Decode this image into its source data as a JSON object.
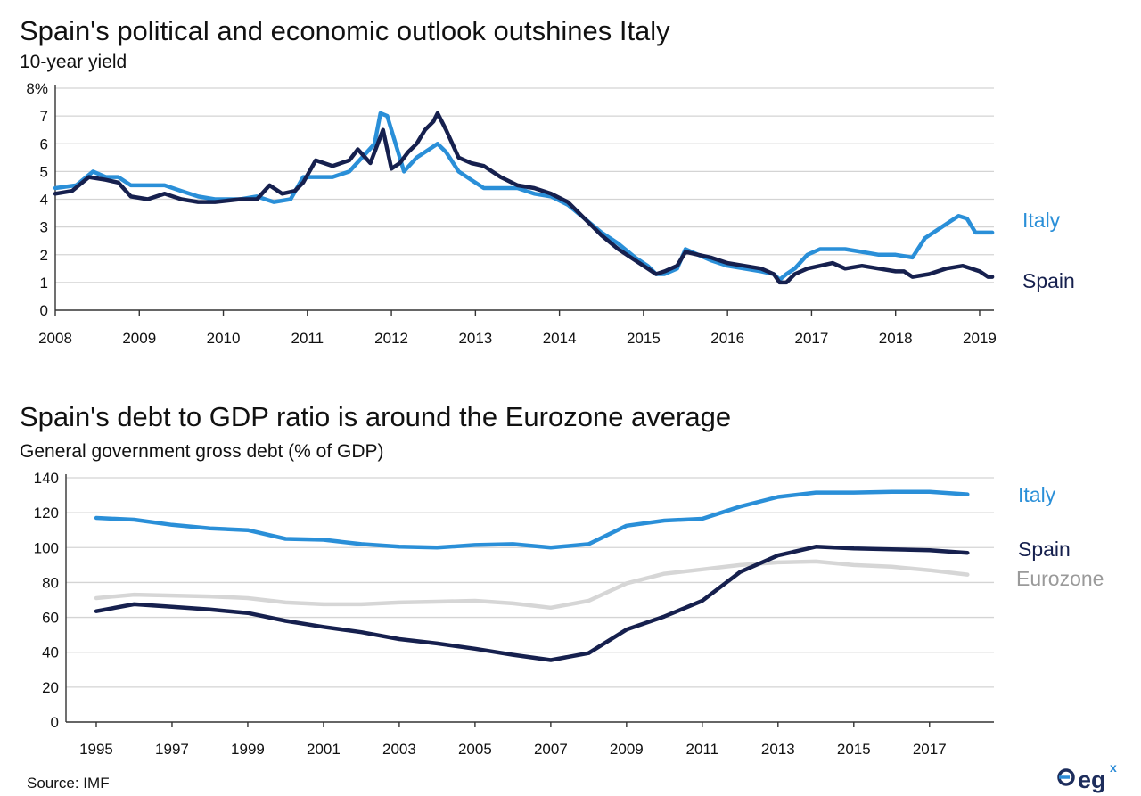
{
  "colors": {
    "italy": "#2a8fd8",
    "spain": "#16204e",
    "eurozone": "#d6d6d6",
    "grid": "#d4d4d4"
  },
  "footer": {
    "source": "Source: IMF",
    "logo_text": "eg",
    "logo_sup": "x"
  },
  "chart_data": [
    {
      "type": "line",
      "title": "Spain's political and economic outlook outshines Italy",
      "subtitle": "10-year yield",
      "ylim": [
        0,
        8
      ],
      "y_ticks": [
        "0",
        "1",
        "2",
        "3",
        "4",
        "5",
        "6",
        "7",
        "8%"
      ],
      "xlim": [
        2008.0,
        2019.17
      ],
      "x_ticks": [
        "2008",
        "2009",
        "2010",
        "2011",
        "2012",
        "2013",
        "2014",
        "2015",
        "2016",
        "2017",
        "2018",
        "2019"
      ],
      "grid": true,
      "series": [
        {
          "name": "Italy",
          "color_key": "italy",
          "x": [
            2008.0,
            2008.25,
            2008.45,
            2008.6,
            2008.75,
            2008.9,
            2009.1,
            2009.3,
            2009.5,
            2009.7,
            2009.9,
            2010.2,
            2010.4,
            2010.6,
            2010.8,
            2010.95,
            2011.1,
            2011.3,
            2011.5,
            2011.65,
            2011.8,
            2011.87,
            2011.95,
            2012.05,
            2012.15,
            2012.3,
            2012.45,
            2012.55,
            2012.65,
            2012.8,
            2012.95,
            2013.1,
            2013.3,
            2013.5,
            2013.7,
            2013.9,
            2014.1,
            2014.3,
            2014.5,
            2014.7,
            2014.9,
            2015.05,
            2015.15,
            2015.25,
            2015.4,
            2015.5,
            2015.65,
            2015.8,
            2016.0,
            2016.2,
            2016.4,
            2016.55,
            2016.62,
            2016.7,
            2016.8,
            2016.95,
            2017.1,
            2017.25,
            2017.4,
            2017.6,
            2017.8,
            2018.0,
            2018.2,
            2018.35,
            2018.45,
            2018.55,
            2018.65,
            2018.75,
            2018.85,
            2018.95,
            2019.05,
            2019.15
          ],
          "values": [
            4.4,
            4.5,
            5.0,
            4.8,
            4.8,
            4.5,
            4.5,
            4.5,
            4.3,
            4.1,
            4.0,
            4.0,
            4.1,
            3.9,
            4.0,
            4.8,
            4.8,
            4.8,
            5.0,
            5.5,
            6.0,
            7.1,
            7.0,
            6.0,
            5.0,
            5.5,
            5.8,
            6.0,
            5.7,
            5.0,
            4.7,
            4.4,
            4.4,
            4.4,
            4.2,
            4.1,
            3.8,
            3.3,
            2.8,
            2.4,
            1.9,
            1.6,
            1.3,
            1.3,
            1.5,
            2.2,
            2.0,
            1.8,
            1.6,
            1.5,
            1.4,
            1.3,
            1.1,
            1.3,
            1.5,
            2.0,
            2.2,
            2.2,
            2.2,
            2.1,
            2.0,
            2.0,
            1.9,
            2.6,
            2.8,
            3.0,
            3.2,
            3.4,
            3.3,
            2.8,
            2.8,
            2.8
          ]
        },
        {
          "name": "Spain",
          "color_key": "spain",
          "x": [
            2008.0,
            2008.2,
            2008.4,
            2008.6,
            2008.75,
            2008.9,
            2009.1,
            2009.3,
            2009.5,
            2009.7,
            2009.9,
            2010.2,
            2010.4,
            2010.55,
            2010.7,
            2010.85,
            2010.95,
            2011.1,
            2011.3,
            2011.5,
            2011.6,
            2011.75,
            2011.9,
            2012.0,
            2012.1,
            2012.2,
            2012.3,
            2012.4,
            2012.5,
            2012.55,
            2012.65,
            2012.8,
            2012.95,
            2013.1,
            2013.3,
            2013.5,
            2013.7,
            2013.9,
            2014.1,
            2014.3,
            2014.5,
            2014.7,
            2014.9,
            2015.05,
            2015.15,
            2015.25,
            2015.4,
            2015.5,
            2015.65,
            2015.8,
            2016.0,
            2016.2,
            2016.4,
            2016.55,
            2016.62,
            2016.7,
            2016.8,
            2016.95,
            2017.1,
            2017.25,
            2017.4,
            2017.6,
            2017.8,
            2018.0,
            2018.1,
            2018.2,
            2018.4,
            2018.6,
            2018.8,
            2018.9,
            2019.0,
            2019.1,
            2019.15
          ],
          "values": [
            4.2,
            4.3,
            4.8,
            4.7,
            4.6,
            4.1,
            4.0,
            4.2,
            4.0,
            3.9,
            3.9,
            4.0,
            4.0,
            4.5,
            4.2,
            4.3,
            4.6,
            5.4,
            5.2,
            5.4,
            5.8,
            5.3,
            6.5,
            5.1,
            5.3,
            5.7,
            6.0,
            6.5,
            6.8,
            7.1,
            6.5,
            5.5,
            5.3,
            5.2,
            4.8,
            4.5,
            4.4,
            4.2,
            3.9,
            3.3,
            2.7,
            2.2,
            1.8,
            1.5,
            1.3,
            1.4,
            1.6,
            2.1,
            2.0,
            1.9,
            1.7,
            1.6,
            1.5,
            1.3,
            1.0,
            1.0,
            1.3,
            1.5,
            1.6,
            1.7,
            1.5,
            1.6,
            1.5,
            1.4,
            1.4,
            1.2,
            1.3,
            1.5,
            1.6,
            1.5,
            1.4,
            1.2,
            1.2
          ]
        }
      ]
    },
    {
      "type": "line",
      "title": "Spain's debt to GDP ratio is around the Eurozone average",
      "subtitle": "General government gross debt (% of GDP)",
      "ylim": [
        0,
        140
      ],
      "y_ticks": [
        "0",
        "20",
        "40",
        "60",
        "80",
        "100",
        "120",
        "140"
      ],
      "xlim": [
        1994.2,
        2018.7
      ],
      "x_ticks": [
        "1995",
        "1997",
        "1999",
        "2001",
        "2003",
        "2005",
        "2007",
        "2009",
        "2011",
        "2013",
        "2015",
        "2017"
      ],
      "grid": true,
      "series": [
        {
          "name": "Italy",
          "color_key": "italy",
          "x": [
            1995,
            1996,
            1997,
            1998,
            1999,
            2000,
            2001,
            2002,
            2003,
            2004,
            2005,
            2006,
            2007,
            2008,
            2009,
            2010,
            2011,
            2012,
            2013,
            2014,
            2015,
            2016,
            2017,
            2018
          ],
          "values": [
            117,
            116,
            113,
            111,
            110,
            105,
            104.5,
            102,
            100.5,
            100,
            101.5,
            102,
            100,
            102,
            112.5,
            115.5,
            116.5,
            123.5,
            129,
            131.5,
            131.5,
            132,
            132,
            130.5
          ]
        },
        {
          "name": "Spain",
          "color_key": "spain",
          "x": [
            1995,
            1996,
            1997,
            1998,
            1999,
            2000,
            2001,
            2002,
            2003,
            2004,
            2005,
            2006,
            2007,
            2008,
            2009,
            2010,
            2011,
            2012,
            2013,
            2014,
            2015,
            2016,
            2017,
            2018
          ],
          "values": [
            63.5,
            67.5,
            66,
            64.5,
            62.5,
            58,
            54.5,
            51.5,
            47.5,
            45,
            42,
            38.5,
            35.5,
            39.5,
            53,
            60.5,
            69.5,
            86,
            95.5,
            100.5,
            99.5,
            99,
            98.5,
            97
          ]
        },
        {
          "name": "Eurozone",
          "color_key": "eurozone",
          "x": [
            1995,
            1996,
            1997,
            1998,
            1999,
            2000,
            2001,
            2002,
            2003,
            2004,
            2005,
            2006,
            2007,
            2008,
            2009,
            2010,
            2011,
            2012,
            2013,
            2014,
            2015,
            2016,
            2017,
            2018
          ],
          "values": [
            71,
            73,
            72.5,
            72,
            71,
            68.5,
            67.5,
            67.5,
            68.5,
            69,
            69.5,
            68,
            65.5,
            69.5,
            79.5,
            85,
            87.5,
            90,
            91.5,
            92,
            90,
            89,
            87,
            84.5
          ]
        }
      ]
    }
  ]
}
